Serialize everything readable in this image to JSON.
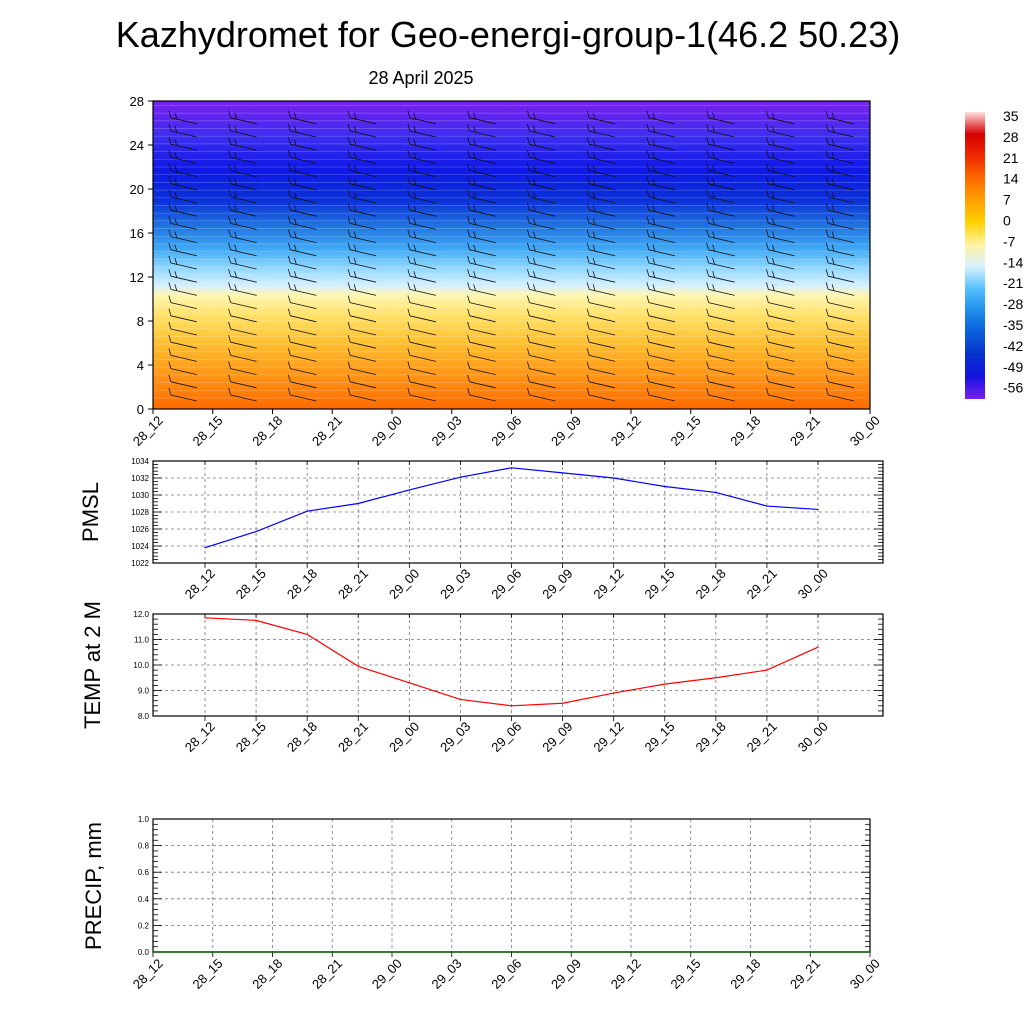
{
  "title": "Kazhydromet for Geo-energi-group-1(46.2 50.23)",
  "subtitle": "28 April 2025",
  "colorbar": {
    "labels": [
      "35",
      "28",
      "21",
      "14",
      "7",
      "0",
      "-7",
      "-14",
      "-21",
      "-28",
      "-35",
      "-42",
      "-49",
      "-56"
    ],
    "colors": [
      "#ffffff",
      "#cc0000",
      "#ee2200",
      "#ff6600",
      "#ffaa00",
      "#ffd200",
      "#fff099",
      "#e0f4ff",
      "#66ccff",
      "#2299ee",
      "#0066dd",
      "#0033cc",
      "#1010e0",
      "#7a1ff0"
    ]
  },
  "chart_data": [
    {
      "type": "heatmap",
      "description_of_fill": "temperature vs height with wind barbs",
      "categories": [
        "28_12",
        "28_15",
        "28_18",
        "28_21",
        "29_00",
        "29_03",
        "29_06",
        "29_09",
        "29_12",
        "29_15",
        "29_18",
        "29_21",
        "30_00"
      ],
      "ylim": [
        0,
        28
      ],
      "yticks": [
        "0",
        "4",
        "8",
        "12",
        "16",
        "20",
        "24",
        "28"
      ],
      "colorbar_range": [
        -56,
        35
      ]
    },
    {
      "type": "line",
      "ylabel": "PMSL",
      "categories": [
        "28_12",
        "28_15",
        "28_18",
        "28_21",
        "29_00",
        "29_03",
        "29_06",
        "29_09",
        "29_12",
        "29_15",
        "29_18",
        "29_21",
        "30_00"
      ],
      "series": [
        {
          "values": [
            1023.8,
            1025.7,
            1028.1,
            1029.0,
            1030.6,
            1032.1,
            1033.2,
            1032.6,
            1032.0,
            1031.0,
            1030.3,
            1028.7,
            1028.3
          ],
          "color": "#0000ff"
        }
      ],
      "ylim": [
        1022,
        1034
      ],
      "yticks": [
        "1022",
        "1024",
        "1026",
        "1028",
        "1030",
        "1032",
        "1034"
      ],
      "grid": true
    },
    {
      "type": "line",
      "ylabel": "TEMP at 2 M",
      "categories": [
        "28_12",
        "28_15",
        "28_18",
        "28_21",
        "29_00",
        "29_03",
        "29_06",
        "29_09",
        "29_12",
        "29_15",
        "29_18",
        "29_21",
        "30_00"
      ],
      "series": [
        {
          "values": [
            11.85,
            11.75,
            11.2,
            9.95,
            9.3,
            8.65,
            8.4,
            8.5,
            8.9,
            9.25,
            9.5,
            9.8,
            10.7
          ],
          "color": "#ff0000"
        }
      ],
      "ylim": [
        8.0,
        12.0
      ],
      "yticks": [
        "8.0",
        "9.0",
        "10.0",
        "11.0",
        "12.0"
      ],
      "grid": true
    },
    {
      "type": "line",
      "ylabel": "PRECIP, mm",
      "categories": [
        "28_12",
        "28_15",
        "28_18",
        "28_21",
        "29_00",
        "29_03",
        "29_06",
        "29_09",
        "29_12",
        "29_15",
        "29_18",
        "29_21",
        "30_00"
      ],
      "series": [
        {
          "values": [
            0,
            0,
            0,
            0,
            0,
            0,
            0,
            0,
            0,
            0,
            0,
            0,
            0
          ],
          "color": "#006400"
        }
      ],
      "ylim": [
        0.0,
        1.0
      ],
      "yticks": [
        "0.0",
        "0.2",
        "0.4",
        "0.6",
        "0.8",
        "1.0"
      ],
      "grid": true
    }
  ]
}
